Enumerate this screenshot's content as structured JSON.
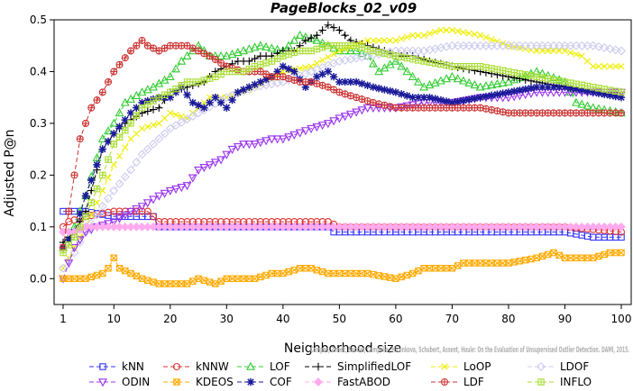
{
  "chart_data": {
    "type": "line",
    "title": "PageBlocks_02_v09",
    "xlabel": "Neighborhood size",
    "ylabel": "Adjusted P@n",
    "xlim": [
      0,
      100
    ],
    "ylim": [
      -0.05,
      0.5
    ],
    "xticks": [
      "1",
      "10",
      "20",
      "30",
      "40",
      "50",
      "60",
      "70",
      "80",
      "90",
      "100"
    ],
    "yticks": [
      "0.0",
      "0.1",
      "0.2",
      "0.3",
      "0.4",
      "0.5"
    ],
    "grid": false,
    "legend_position": "bottom",
    "watermark": "Campos, Zimek, Sander, Campello, Micenkova, Schubert, Assent, Houle: On the Evaluation of Unsupervised Outlier Detection. DAMI, 2015.",
    "series": [
      {
        "name": "kNN",
        "color": "#3333ff",
        "marker": "square",
        "dash": "5,3",
        "x": [
          1,
          2,
          5,
          10,
          15,
          17,
          18,
          20,
          30,
          40,
          48,
          49,
          60,
          70,
          80,
          90,
          95,
          100
        ],
        "y": [
          0.13,
          0.13,
          0.13,
          0.12,
          0.12,
          0.12,
          0.1,
          0.1,
          0.1,
          0.1,
          0.1,
          0.09,
          0.09,
          0.09,
          0.09,
          0.09,
          0.08,
          0.08
        ]
      },
      {
        "name": "kNNW",
        "color": "#dd3333",
        "marker": "circle",
        "dash": "5,3",
        "x": [
          1,
          2,
          5,
          10,
          15,
          16,
          18,
          20,
          30,
          40,
          48,
          50,
          60,
          70,
          80,
          90,
          100
        ],
        "y": [
          0.1,
          0.11,
          0.12,
          0.13,
          0.13,
          0.13,
          0.11,
          0.11,
          0.11,
          0.11,
          0.11,
          0.1,
          0.1,
          0.1,
          0.1,
          0.1,
          0.09
        ]
      },
      {
        "name": "LOF",
        "color": "#33cc33",
        "marker": "triangle",
        "dash": "5,3",
        "x": [
          1,
          3,
          5,
          8,
          10,
          12,
          15,
          17,
          20,
          22,
          25,
          27,
          30,
          33,
          36,
          40,
          43,
          46,
          50,
          53,
          55,
          57,
          60,
          65,
          70,
          75,
          80,
          85,
          90,
          92,
          95,
          100
        ],
        "y": [
          0.06,
          0.1,
          0.16,
          0.27,
          0.3,
          0.34,
          0.36,
          0.37,
          0.39,
          0.42,
          0.45,
          0.43,
          0.43,
          0.44,
          0.45,
          0.44,
          0.47,
          0.46,
          0.44,
          0.44,
          0.43,
          0.4,
          0.42,
          0.37,
          0.39,
          0.37,
          0.38,
          0.4,
          0.38,
          0.34,
          0.33,
          0.32
        ]
      },
      {
        "name": "SimplifiedLOF",
        "color": "#000000",
        "marker": "plus",
        "dash": "5,3",
        "x": [
          1,
          3,
          5,
          8,
          10,
          12,
          15,
          18,
          20,
          23,
          26,
          28,
          30,
          32,
          34,
          36,
          38,
          40,
          42,
          44,
          46,
          48,
          50,
          52,
          55,
          58,
          60,
          63,
          66,
          70,
          75,
          80,
          85,
          90,
          95,
          100
        ],
        "y": [
          0.07,
          0.09,
          0.13,
          0.25,
          0.28,
          0.3,
          0.32,
          0.33,
          0.36,
          0.37,
          0.38,
          0.4,
          0.41,
          0.42,
          0.42,
          0.43,
          0.43,
          0.44,
          0.44,
          0.46,
          0.47,
          0.49,
          0.48,
          0.46,
          0.45,
          0.44,
          0.43,
          0.43,
          0.42,
          0.41,
          0.4,
          0.39,
          0.38,
          0.37,
          0.36,
          0.36
        ]
      },
      {
        "name": "LoOP",
        "color": "#eeee00",
        "marker": "x",
        "dash": "5,3",
        "x": [
          1,
          3,
          5,
          8,
          10,
          13,
          15,
          18,
          20,
          23,
          25,
          27,
          30,
          35,
          40,
          45,
          50,
          55,
          60,
          63,
          65,
          68,
          70,
          75,
          80,
          85,
          90,
          93,
          95,
          100
        ],
        "y": [
          0.02,
          0.06,
          0.1,
          0.17,
          0.22,
          0.27,
          0.29,
          0.3,
          0.32,
          0.31,
          0.33,
          0.35,
          0.35,
          0.37,
          0.4,
          0.41,
          0.44,
          0.46,
          0.46,
          0.47,
          0.47,
          0.48,
          0.48,
          0.47,
          0.45,
          0.44,
          0.44,
          0.43,
          0.41,
          0.41
        ]
      },
      {
        "name": "LDOF",
        "color": "#ccccee",
        "marker": "diamond",
        "dash": "5,3",
        "x": [
          1,
          3,
          5,
          8,
          10,
          13,
          15,
          18,
          20,
          25,
          30,
          35,
          40,
          45,
          50,
          55,
          60,
          65,
          70,
          75,
          80,
          85,
          90,
          95,
          100
        ],
        "y": [
          0.02,
          0.05,
          0.09,
          0.14,
          0.17,
          0.21,
          0.24,
          0.27,
          0.29,
          0.32,
          0.35,
          0.37,
          0.38,
          0.4,
          0.42,
          0.43,
          0.44,
          0.44,
          0.45,
          0.45,
          0.45,
          0.45,
          0.45,
          0.45,
          0.44
        ]
      },
      {
        "name": "ODIN",
        "color": "#9933ee",
        "marker": "triangle-down",
        "dash": "5,3",
        "x": [
          1,
          2,
          3,
          5,
          7,
          10,
          13,
          15,
          18,
          20,
          23,
          25,
          27,
          29,
          31,
          33,
          35,
          38,
          40,
          45,
          48,
          50,
          55,
          60,
          65,
          70,
          75,
          80,
          85,
          90,
          95,
          100
        ],
        "y": [
          0.0,
          0.03,
          0.06,
          0.09,
          0.1,
          0.11,
          0.13,
          0.14,
          0.16,
          0.17,
          0.18,
          0.21,
          0.22,
          0.23,
          0.25,
          0.26,
          0.26,
          0.27,
          0.27,
          0.29,
          0.3,
          0.31,
          0.33,
          0.33,
          0.34,
          0.34,
          0.35,
          0.35,
          0.36,
          0.36,
          0.36,
          0.36
        ]
      },
      {
        "name": "KDEOS",
        "color": "#ffaa00",
        "marker": "square-x",
        "dash": "5,3",
        "x": [
          1,
          3,
          5,
          8,
          9,
          10,
          11,
          13,
          15,
          18,
          20,
          23,
          25,
          28,
          30,
          33,
          35,
          38,
          40,
          43,
          45,
          48,
          50,
          55,
          60,
          63,
          65,
          70,
          72,
          75,
          80,
          85,
          88,
          90,
          95,
          98,
          100
        ],
        "y": [
          0.0,
          0.0,
          0.0,
          0.01,
          0.02,
          0.04,
          0.02,
          0.01,
          0.0,
          -0.01,
          -0.01,
          -0.01,
          0.0,
          -0.01,
          0.0,
          0.0,
          0.0,
          0.01,
          0.01,
          0.02,
          0.02,
          0.01,
          0.01,
          0.01,
          0.0,
          0.01,
          0.02,
          0.02,
          0.03,
          0.03,
          0.03,
          0.04,
          0.05,
          0.04,
          0.04,
          0.05,
          0.05
        ]
      },
      {
        "name": "COF",
        "color": "#1a1a99",
        "marker": "star",
        "dash": "5,3",
        "x": [
          1,
          3,
          5,
          8,
          10,
          13,
          15,
          18,
          20,
          22,
          24,
          26,
          28,
          30,
          32,
          34,
          36,
          38,
          40,
          42,
          44,
          46,
          48,
          50,
          53,
          56,
          60,
          63,
          66,
          70,
          75,
          80,
          85,
          90,
          95,
          100
        ],
        "y": [
          0.06,
          0.09,
          0.16,
          0.25,
          0.28,
          0.32,
          0.34,
          0.35,
          0.35,
          0.37,
          0.34,
          0.33,
          0.35,
          0.33,
          0.36,
          0.37,
          0.38,
          0.39,
          0.41,
          0.4,
          0.37,
          0.39,
          0.4,
          0.38,
          0.38,
          0.37,
          0.36,
          0.35,
          0.35,
          0.34,
          0.35,
          0.36,
          0.37,
          0.37,
          0.36,
          0.35
        ]
      },
      {
        "name": "FastABOD",
        "color": "#ffaaee",
        "marker": "diamond-filled",
        "dash": "5,3",
        "x": [
          1,
          3,
          5,
          8,
          10,
          15,
          20,
          30,
          40,
          50,
          60,
          70,
          80,
          90,
          100
        ],
        "y": [
          0.09,
          0.09,
          0.1,
          0.1,
          0.1,
          0.1,
          0.1,
          0.1,
          0.1,
          0.1,
          0.1,
          0.1,
          0.1,
          0.1,
          0.1
        ]
      },
      {
        "name": "LDF",
        "color": "#cc3333",
        "marker": "circle-plus",
        "dash": "5,3",
        "x": [
          1,
          2,
          3,
          4,
          5,
          6,
          8,
          10,
          13,
          15,
          16,
          18,
          20,
          23,
          25,
          27,
          30,
          33,
          36,
          38,
          40,
          43,
          45,
          48,
          50,
          53,
          56,
          60,
          65,
          70,
          75,
          80,
          85,
          90,
          95,
          100
        ],
        "y": [
          0.06,
          0.13,
          0.2,
          0.27,
          0.3,
          0.33,
          0.36,
          0.4,
          0.44,
          0.46,
          0.45,
          0.44,
          0.45,
          0.45,
          0.44,
          0.43,
          0.41,
          0.4,
          0.4,
          0.39,
          0.39,
          0.38,
          0.38,
          0.37,
          0.36,
          0.35,
          0.34,
          0.33,
          0.33,
          0.33,
          0.33,
          0.32,
          0.32,
          0.32,
          0.32,
          0.32
        ]
      },
      {
        "name": "INFLO",
        "color": "#aadd33",
        "marker": "square-cross",
        "dash": "5,3",
        "x": [
          1,
          3,
          5,
          8,
          10,
          13,
          15,
          18,
          20,
          23,
          25,
          28,
          30,
          33,
          35,
          38,
          40,
          43,
          45,
          48,
          50,
          53,
          56,
          60,
          65,
          70,
          75,
          80,
          85,
          90,
          95,
          100
        ],
        "y": [
          0.05,
          0.08,
          0.12,
          0.2,
          0.26,
          0.3,
          0.33,
          0.35,
          0.36,
          0.38,
          0.38,
          0.39,
          0.4,
          0.4,
          0.41,
          0.42,
          0.43,
          0.44,
          0.44,
          0.45,
          0.45,
          0.45,
          0.44,
          0.43,
          0.42,
          0.41,
          0.41,
          0.4,
          0.39,
          0.38,
          0.37,
          0.36
        ]
      }
    ]
  }
}
